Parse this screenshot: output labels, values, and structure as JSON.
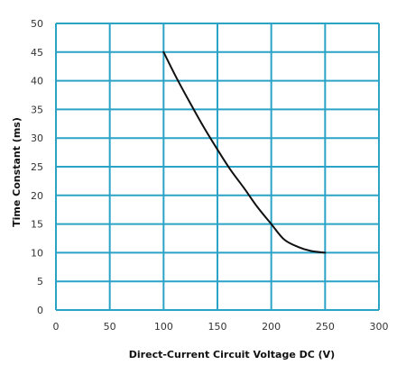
{
  "chart_data": {
    "type": "line",
    "title": "",
    "xlabel": "Direct-Current  Circuit Voltage DC (V)",
    "ylabel": "Time Constant (ms)",
    "xlim": [
      0,
      300
    ],
    "ylim": [
      0,
      50
    ],
    "xticks": [
      0,
      50,
      100,
      150,
      200,
      250,
      300
    ],
    "yticks": [
      0,
      5,
      10,
      15,
      20,
      25,
      30,
      35,
      40,
      45,
      50
    ],
    "grid": true,
    "grid_color": "#2aa3c7",
    "line_color": "#111111",
    "legend": "none",
    "series": [
      {
        "x": [
          100,
          112,
          125,
          137,
          150,
          162,
          175,
          187,
          200,
          212,
          225,
          237,
          250
        ],
        "y": [
          45,
          40.5,
          36,
          32,
          28,
          24.5,
          21.2,
          18,
          15,
          12.3,
          11,
          10.3,
          10
        ]
      }
    ]
  }
}
